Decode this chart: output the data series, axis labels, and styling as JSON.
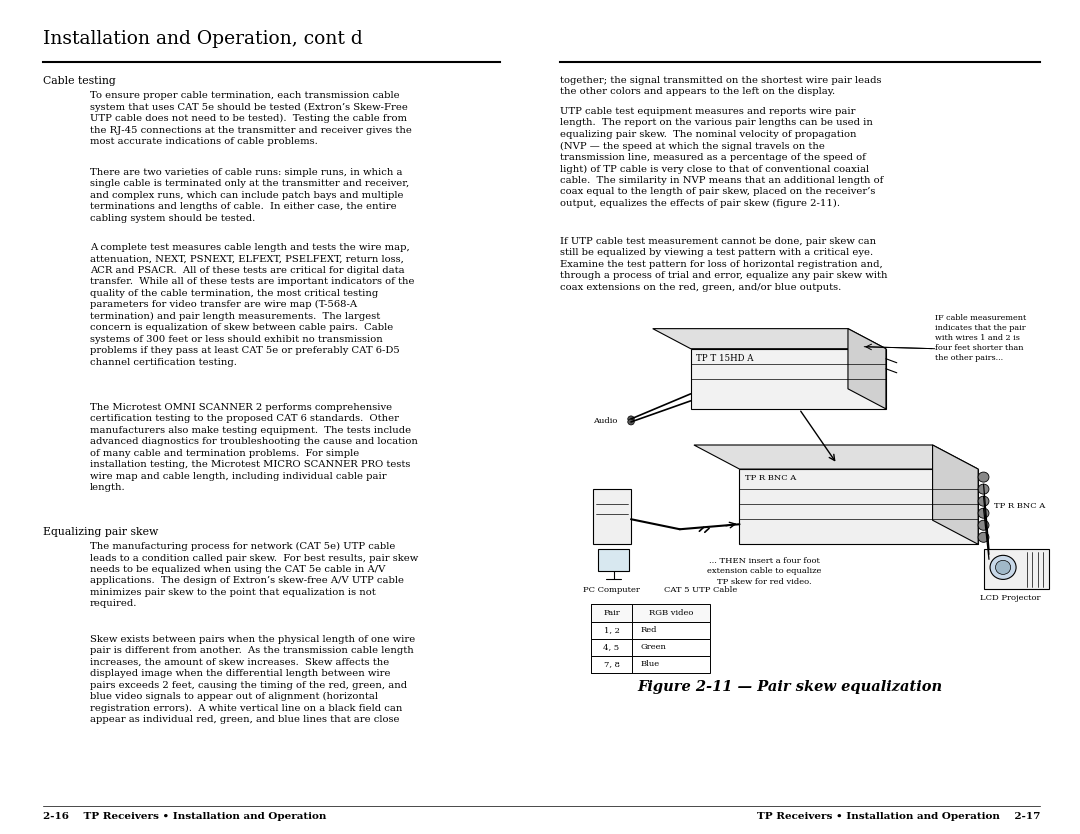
{
  "title": "Installation and Operation, cont d",
  "background_color": "#ffffff",
  "text_color": "#000000",
  "footer_left": "2-16    TP Receivers • Installation and Operation",
  "footer_right": "TP Receivers • Installation and Operation    2-17",
  "figure_caption": "Figure 2-11 — Pair skew equalization"
}
